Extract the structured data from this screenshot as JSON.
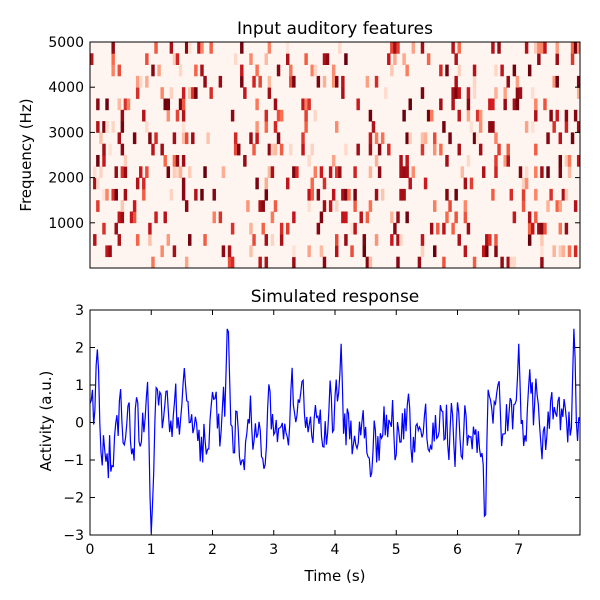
{
  "chart_data": [
    {
      "type": "heatmap",
      "title": "Input auditory features",
      "xlabel": "",
      "ylabel": "Frequency (Hz)",
      "xlim": [
        0,
        8
      ],
      "ylim": [
        0,
        5000
      ],
      "y_ticks": [
        1000,
        2000,
        3000,
        4000,
        5000
      ],
      "y_tick_labels": [
        "1000",
        "2000",
        "3000",
        "4000",
        "5000"
      ],
      "x_ticks_visible": false,
      "colormap": "Reds",
      "colormap_colors": [
        "#fff5f0",
        "#fcbba1",
        "#fb6a4a",
        "#cb181d",
        "#67000d"
      ],
      "n_time_bins": 160,
      "n_freq_bins": 20,
      "value_range": [
        0,
        1
      ],
      "description_of_values": "sparse random spectrotemporal stimulus; most cells near 0, scattered bursts up to 1"
    },
    {
      "type": "line",
      "title": "Simulated response",
      "xlabel": "Time (s)",
      "ylabel": "Activity (a.u.)",
      "xlim": [
        0,
        8
      ],
      "ylim": [
        -3,
        3
      ],
      "x_ticks": [
        0,
        1,
        2,
        3,
        4,
        5,
        6,
        7
      ],
      "x_tick_labels": [
        "0",
        "1",
        "2",
        "3",
        "4",
        "5",
        "6",
        "7"
      ],
      "y_ticks": [
        -3,
        -2,
        -1,
        0,
        1,
        2,
        3
      ],
      "y_tick_labels": [
        "−3",
        "−2",
        "−1",
        "0",
        "1",
        "2",
        "3"
      ],
      "series": [
        {
          "color": "#0000ff",
          "x_step": 0.02,
          "y_range_observed": [
            -2.95,
            2.7
          ],
          "notable_points": [
            {
              "x": 0.12,
              "y": 1.95
            },
            {
              "x": 1.0,
              "y": -2.95
            },
            {
              "x": 2.25,
              "y": 2.7
            },
            {
              "x": 4.1,
              "y": 2.1
            },
            {
              "x": 6.45,
              "y": -2.8
            },
            {
              "x": 7.0,
              "y": 2.1
            },
            {
              "x": 7.9,
              "y": 2.5
            }
          ]
        }
      ]
    }
  ]
}
